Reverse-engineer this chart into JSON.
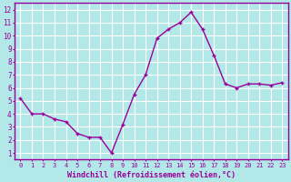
{
  "x": [
    0,
    1,
    2,
    3,
    4,
    5,
    6,
    7,
    8,
    9,
    10,
    11,
    12,
    13,
    14,
    15,
    16,
    17,
    18,
    19,
    20,
    21,
    22,
    23
  ],
  "y": [
    5.2,
    4.0,
    4.0,
    3.6,
    3.4,
    2.5,
    2.2,
    2.2,
    1.0,
    3.2,
    5.5,
    7.0,
    9.8,
    10.5,
    11.0,
    11.8,
    10.5,
    8.5,
    6.3,
    6.0,
    6.3,
    6.3,
    6.2,
    6.4
  ],
  "line_color": "#990099",
  "marker": "+",
  "marker_size": 3,
  "bg_color": "#b3e8e8",
  "grid_color": "#ffffff",
  "xlabel": "Windchill (Refroidissement éolien,°C)",
  "xlabel_color": "#990099",
  "tick_color": "#990099",
  "ylabel_ticks": [
    1,
    2,
    3,
    4,
    5,
    6,
    7,
    8,
    9,
    10,
    11,
    12
  ],
  "xlim": [
    -0.5,
    23.5
  ],
  "ylim": [
    0.5,
    12.5
  ],
  "xtick_labels": [
    "0",
    "1",
    "2",
    "3",
    "4",
    "5",
    "6",
    "7",
    "8",
    "9",
    "10",
    "11",
    "12",
    "13",
    "14",
    "15",
    "16",
    "17",
    "18",
    "19",
    "20",
    "21",
    "22",
    "23"
  ],
  "line_width": 1.0,
  "border_color": "#990099",
  "fig_width": 3.2,
  "fig_height": 2.0,
  "dpi": 100
}
